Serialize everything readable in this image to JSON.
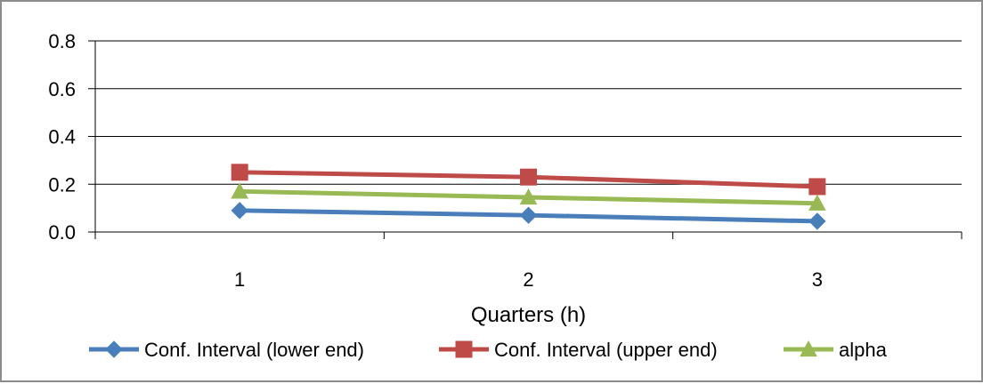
{
  "chart_data": {
    "type": "line",
    "title": "",
    "xlabel": "Quarters (h)",
    "ylabel": "",
    "categories": [
      "1",
      "2",
      "3"
    ],
    "ylim": [
      0,
      0.8
    ],
    "yticks": [
      "0.0",
      "0.2",
      "0.4",
      "0.6",
      "0.8"
    ],
    "grid": "horizontal",
    "legend_position": "bottom",
    "series": [
      {
        "name": "Conf. Interval (lower end)",
        "values": [
          0.09,
          0.07,
          0.045
        ],
        "color": "#4a7ebb",
        "marker": "diamond"
      },
      {
        "name": "Conf. Interval (upper end)",
        "values": [
          0.25,
          0.23,
          0.19
        ],
        "color": "#be4b48",
        "marker": "square"
      },
      {
        "name": "alpha",
        "values": [
          0.17,
          0.145,
          0.12
        ],
        "color": "#98b954",
        "marker": "triangle"
      }
    ]
  }
}
